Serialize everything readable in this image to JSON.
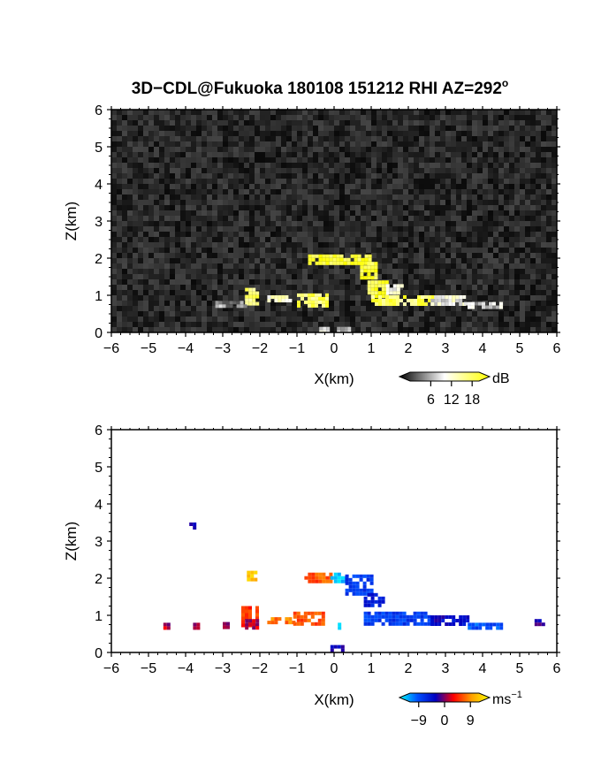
{
  "title": "3D−CDL@Fukuoka 180108 151212 RHI AZ=292",
  "title_degree": "o",
  "chart_data": [
    {
      "type": "heatmap",
      "name": "reflectivity",
      "xlabel": "X(km)",
      "ylabel": "Z(km)",
      "xlim": [
        -6,
        6
      ],
      "ylim": [
        0,
        6
      ],
      "x_ticks": [
        "−6",
        "−5",
        "−4",
        "−3",
        "−2",
        "−1",
        "0",
        "1",
        "2",
        "3",
        "4",
        "5",
        "6"
      ],
      "y_ticks": [
        "0",
        "1",
        "2",
        "3",
        "4",
        "5",
        "6"
      ],
      "background": "noise",
      "features": [
        {
          "x": [
            -0.7,
            1.0
          ],
          "z": [
            1.9,
            2.1
          ],
          "value": 18
        },
        {
          "x": [
            0.7,
            1.1
          ],
          "z": [
            1.5,
            1.9
          ],
          "value": 18
        },
        {
          "x": [
            -1.0,
            -0.2
          ],
          "z": [
            0.75,
            1.05
          ],
          "value": 16
        },
        {
          "x": [
            -2.4,
            -2.1
          ],
          "z": [
            0.75,
            1.2
          ],
          "value": 16
        },
        {
          "x": [
            -1.8,
            -1.2
          ],
          "z": [
            0.85,
            1.0
          ],
          "value": 12
        },
        {
          "x": [
            0.9,
            1.4
          ],
          "z": [
            1.0,
            1.4
          ],
          "value": 18
        },
        {
          "x": [
            1.0,
            2.8
          ],
          "z": [
            0.8,
            1.0
          ],
          "value": 16
        },
        {
          "x": [
            1.4,
            1.8
          ],
          "z": [
            1.1,
            1.3
          ],
          "value": 10
        },
        {
          "x": [
            2.6,
            3.5
          ],
          "z": [
            0.8,
            1.0
          ],
          "value": 10
        },
        {
          "x": [
            3.5,
            4.5
          ],
          "z": [
            0.72,
            0.82
          ],
          "value": 8
        },
        {
          "x": [
            -3.2,
            -2.4
          ],
          "z": [
            0.75,
            0.85
          ],
          "value": 6
        },
        {
          "x": [
            -0.4,
            0.4
          ],
          "z": [
            0.0,
            0.15
          ],
          "value": 8
        }
      ],
      "colorbar": {
        "unit": "dB",
        "ticks": [
          "6",
          "12",
          "18"
        ],
        "range": [
          0,
          20
        ],
        "stops": [
          "#000000",
          "#ffffff",
          "#ffff00"
        ]
      }
    },
    {
      "type": "heatmap",
      "name": "doppler_velocity",
      "xlabel": "X(km)",
      "ylabel": "Z(km)",
      "xlim": [
        -6,
        6
      ],
      "ylim": [
        0,
        6
      ],
      "x_ticks": [
        "−6",
        "−5",
        "−4",
        "−3",
        "−2",
        "−1",
        "0",
        "1",
        "2",
        "3",
        "4",
        "5",
        "6"
      ],
      "y_ticks": [
        "0",
        "1",
        "2",
        "3",
        "4",
        "5",
        "6"
      ],
      "features": [
        {
          "x": [
            -0.8,
            -0.1
          ],
          "z": [
            1.9,
            2.15
          ],
          "value": 5
        },
        {
          "x": [
            -0.1,
            0.3
          ],
          "z": [
            1.9,
            2.15
          ],
          "value": -10
        },
        {
          "x": [
            0.3,
            1.0
          ],
          "z": [
            1.6,
            2.1
          ],
          "value": -6
        },
        {
          "x": [
            0.8,
            1.3
          ],
          "z": [
            1.3,
            1.6
          ],
          "value": -4
        },
        {
          "x": [
            0.8,
            2.6
          ],
          "z": [
            0.75,
            1.1
          ],
          "value": -6
        },
        {
          "x": [
            2.6,
            3.6
          ],
          "z": [
            0.75,
            1.0
          ],
          "value": -3
        },
        {
          "x": [
            3.6,
            4.5
          ],
          "z": [
            0.7,
            0.8
          ],
          "value": -7
        },
        {
          "x": [
            5.4,
            5.6
          ],
          "z": [
            0.75,
            0.9
          ],
          "value": -2
        },
        {
          "x": [
            -1.1,
            -0.3
          ],
          "z": [
            0.8,
            1.1
          ],
          "value": 5
        },
        {
          "x": [
            -1.8,
            -1.1
          ],
          "z": [
            0.8,
            0.95
          ],
          "value": 6
        },
        {
          "x": [
            -2.5,
            -2.1
          ],
          "z": [
            0.7,
            1.25
          ],
          "value": 4
        },
        {
          "x": [
            -2.4,
            -2.1
          ],
          "z": [
            0.7,
            0.9
          ],
          "value": 1
        },
        {
          "x": [
            -2.35,
            -2.1
          ],
          "z": [
            2.0,
            2.2
          ],
          "value": 9
        },
        {
          "x": [
            -3.9,
            -3.8
          ],
          "z": [
            3.4,
            3.5
          ],
          "value": -2
        },
        {
          "x": [
            -4.6,
            -4.5
          ],
          "z": [
            0.7,
            0.8
          ],
          "value": 1
        },
        {
          "x": [
            -3.8,
            -3.7
          ],
          "z": [
            0.7,
            0.8
          ],
          "value": 1
        },
        {
          "x": [
            -3.0,
            -2.9
          ],
          "z": [
            0.72,
            0.82
          ],
          "value": 1
        },
        {
          "x": [
            -0.1,
            0.2
          ],
          "z": [
            0.0,
            0.2
          ],
          "value": -2
        },
        {
          "x": [
            0.1,
            0.18
          ],
          "z": [
            0.7,
            0.8
          ],
          "value": -10
        }
      ],
      "colorbar": {
        "unit": "ms",
        "unit_exponent": "−1",
        "ticks": [
          "−9",
          "0",
          "9"
        ],
        "range": [
          -12,
          12
        ],
        "stops": [
          "#00ffff",
          "#0050ff",
          "#0000c0",
          "#ff0000",
          "#ffa000",
          "#ffff00"
        ]
      }
    }
  ]
}
